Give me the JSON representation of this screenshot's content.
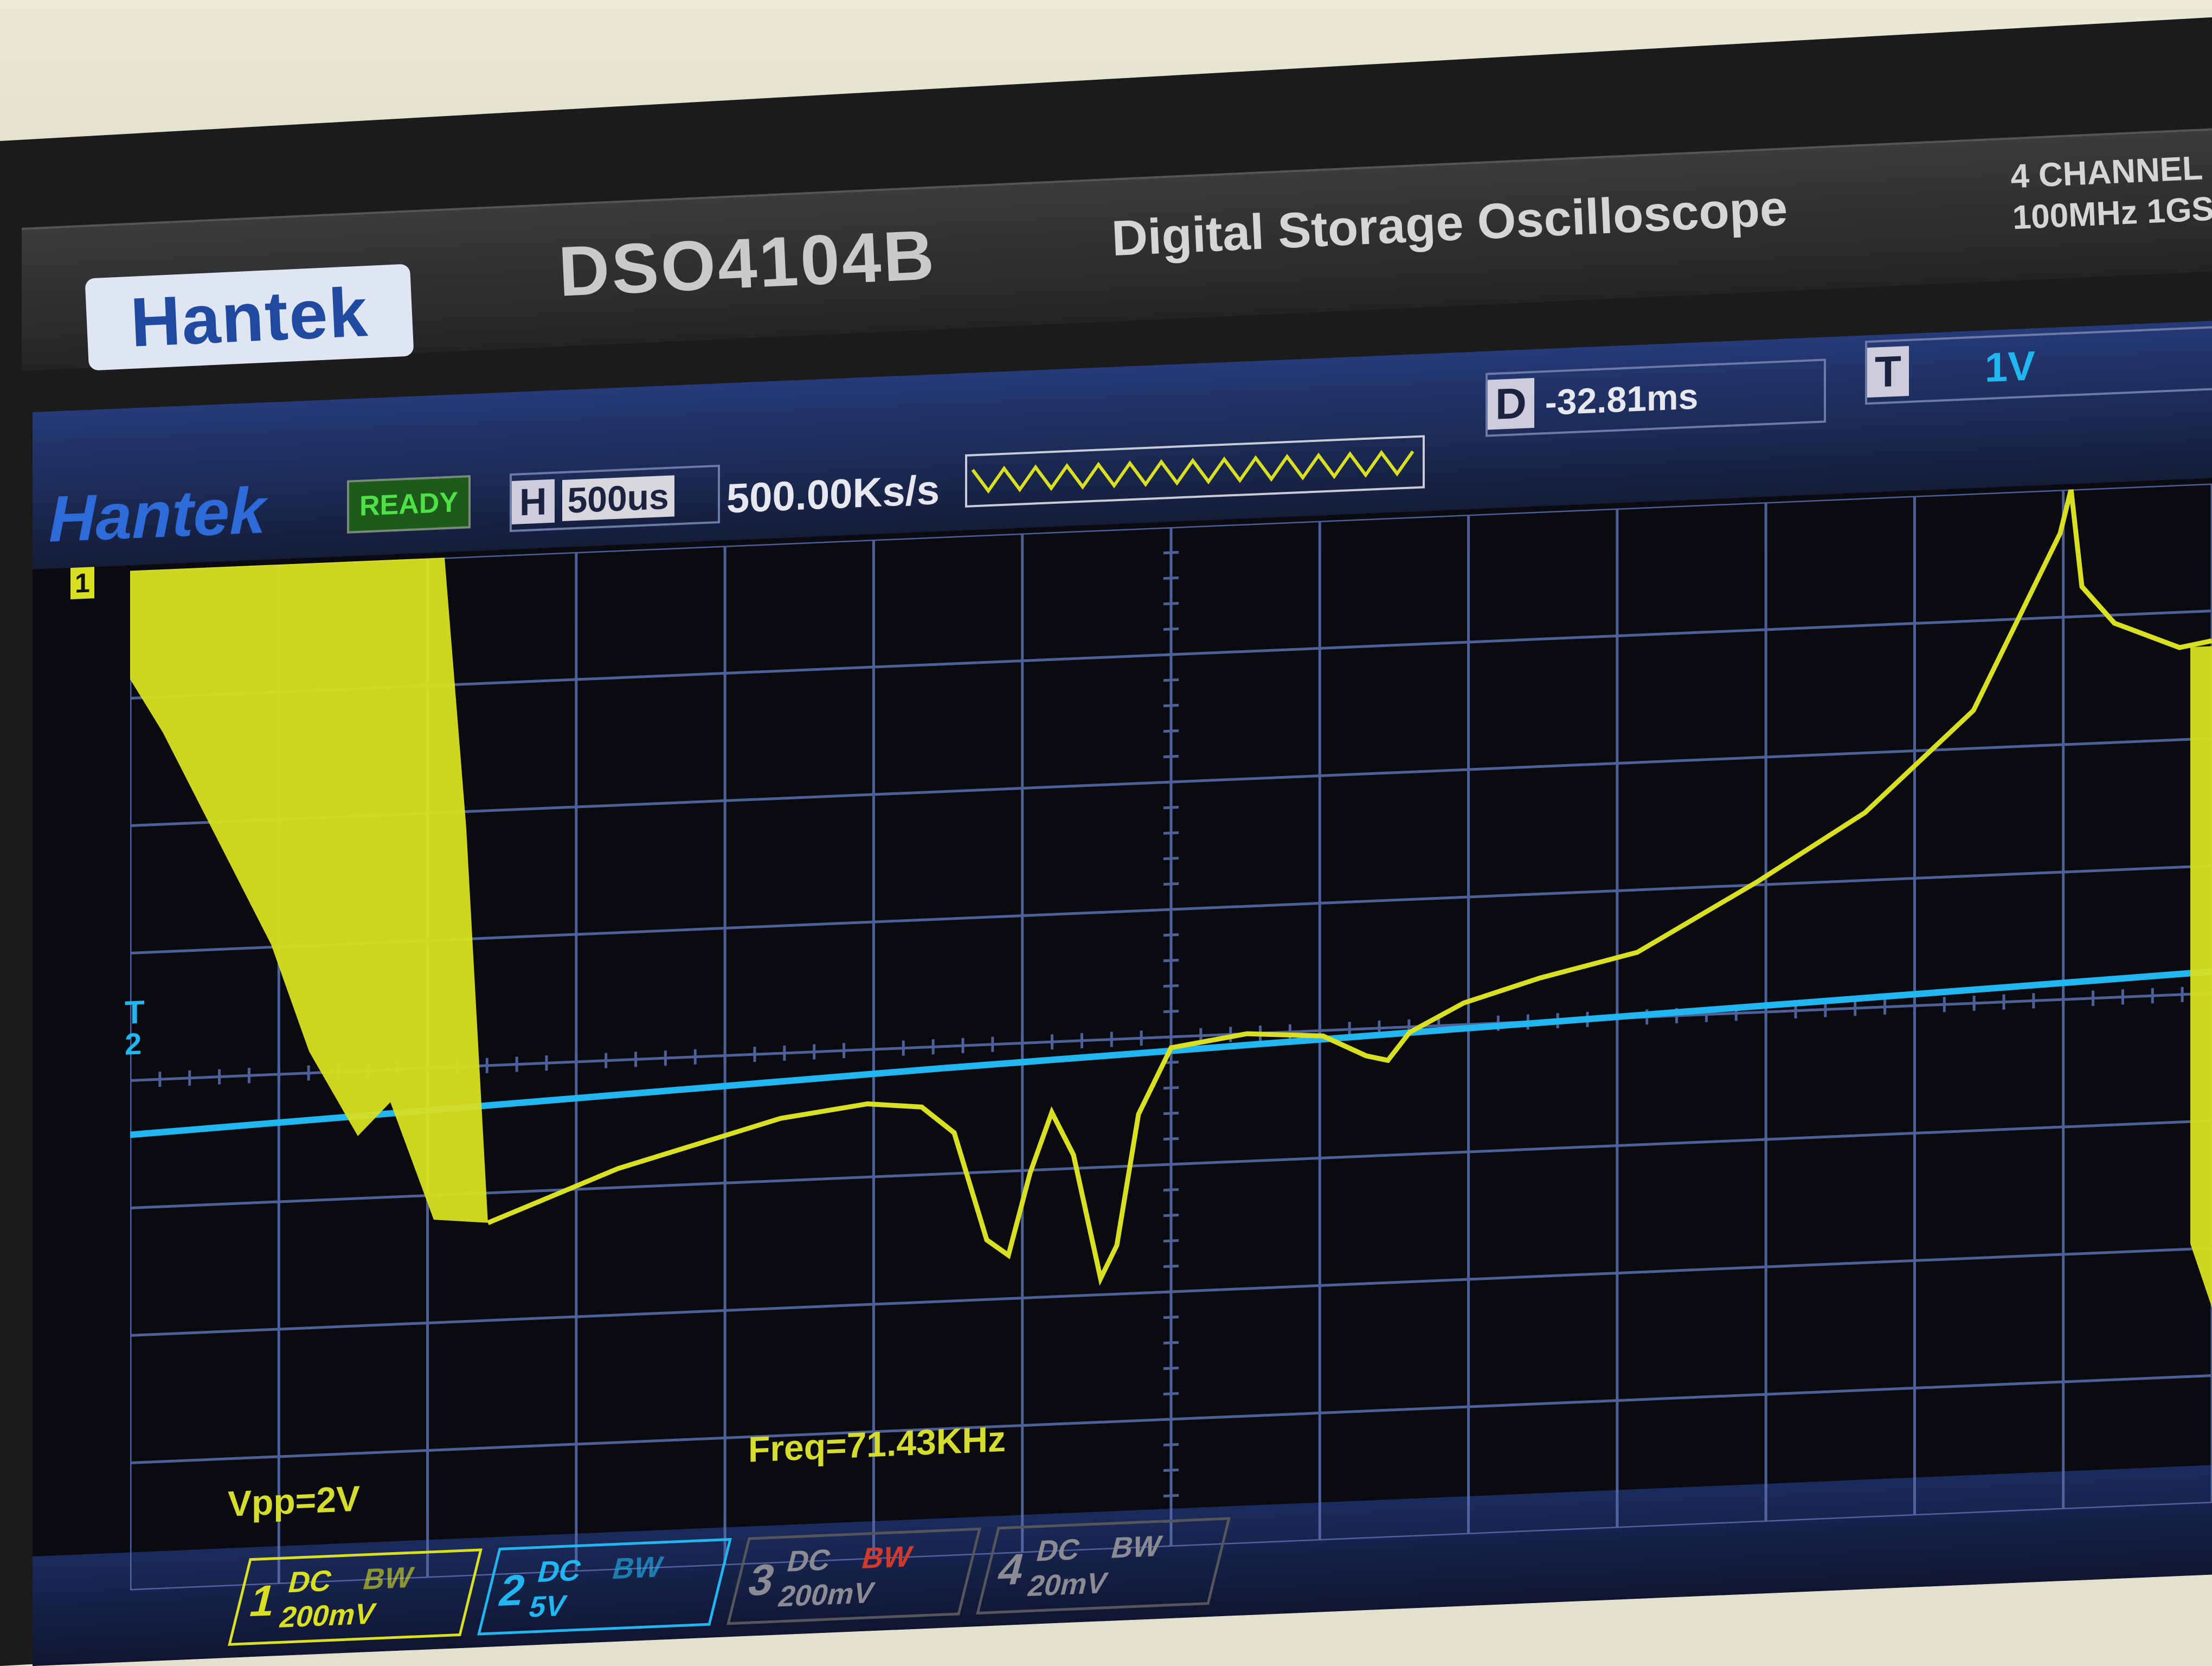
{
  "device": {
    "brand": "Hantek",
    "model": "DSO4104B",
    "title": "Digital Storage Oscilloscope",
    "channels_line1": "4 CHANNEL",
    "channels_line2": "100MHz 1GS"
  },
  "screen": {
    "logo": "Hantek",
    "status": "READY",
    "timebase_label": "H",
    "timebase": "500us",
    "sample_rate": "500.00Ks/s",
    "delay_label": "D",
    "delay": "-32.81ms",
    "trigger_label": "T",
    "trigger_level": "1V",
    "ch1_marker": "1",
    "trigger_marker": "T",
    "ch2_marker": "2",
    "vpp": "Vpp=2V",
    "freq": "Freq=71.43KHz"
  },
  "channels": [
    {
      "num": "1",
      "coupling": "DC",
      "bw": "BW",
      "scale": "200mV",
      "color": "#d9e021"
    },
    {
      "num": "2",
      "coupling": "DC",
      "bw": "BW",
      "scale": "5V",
      "color": "#22b6f0"
    },
    {
      "num": "3",
      "coupling": "DC",
      "bw": "BW",
      "scale": "200mV",
      "color": "#8b8b93"
    },
    {
      "num": "4",
      "coupling": "DC",
      "bw": "BW",
      "scale": "20mV",
      "color": "#8b8b93"
    }
  ],
  "colors": {
    "ch1_trace": "#d9e021",
    "ch2_trace": "#22b6f0",
    "grid": "#5b6fb0"
  }
}
